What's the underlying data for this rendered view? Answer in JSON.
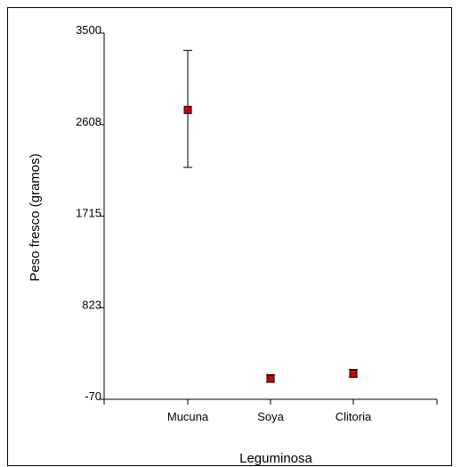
{
  "chart_data": {
    "type": "scatter",
    "xlabel": "Leguminosa",
    "ylabel": "Peso fresco (gramos)",
    "categories": [
      "Mucuna",
      "Soya",
      "Clitoria"
    ],
    "y_ticks": [
      "3500",
      "2608",
      "1715",
      "823",
      "-70"
    ],
    "ylim": [
      -70,
      3500
    ],
    "grid": false,
    "series": [
      {
        "values": [
          2750,
          130,
          180
        ],
        "error_low": [
          2190,
          95,
          145
        ],
        "error_high": [
          3330,
          170,
          220
        ],
        "marker_color": "#d40000"
      }
    ]
  }
}
